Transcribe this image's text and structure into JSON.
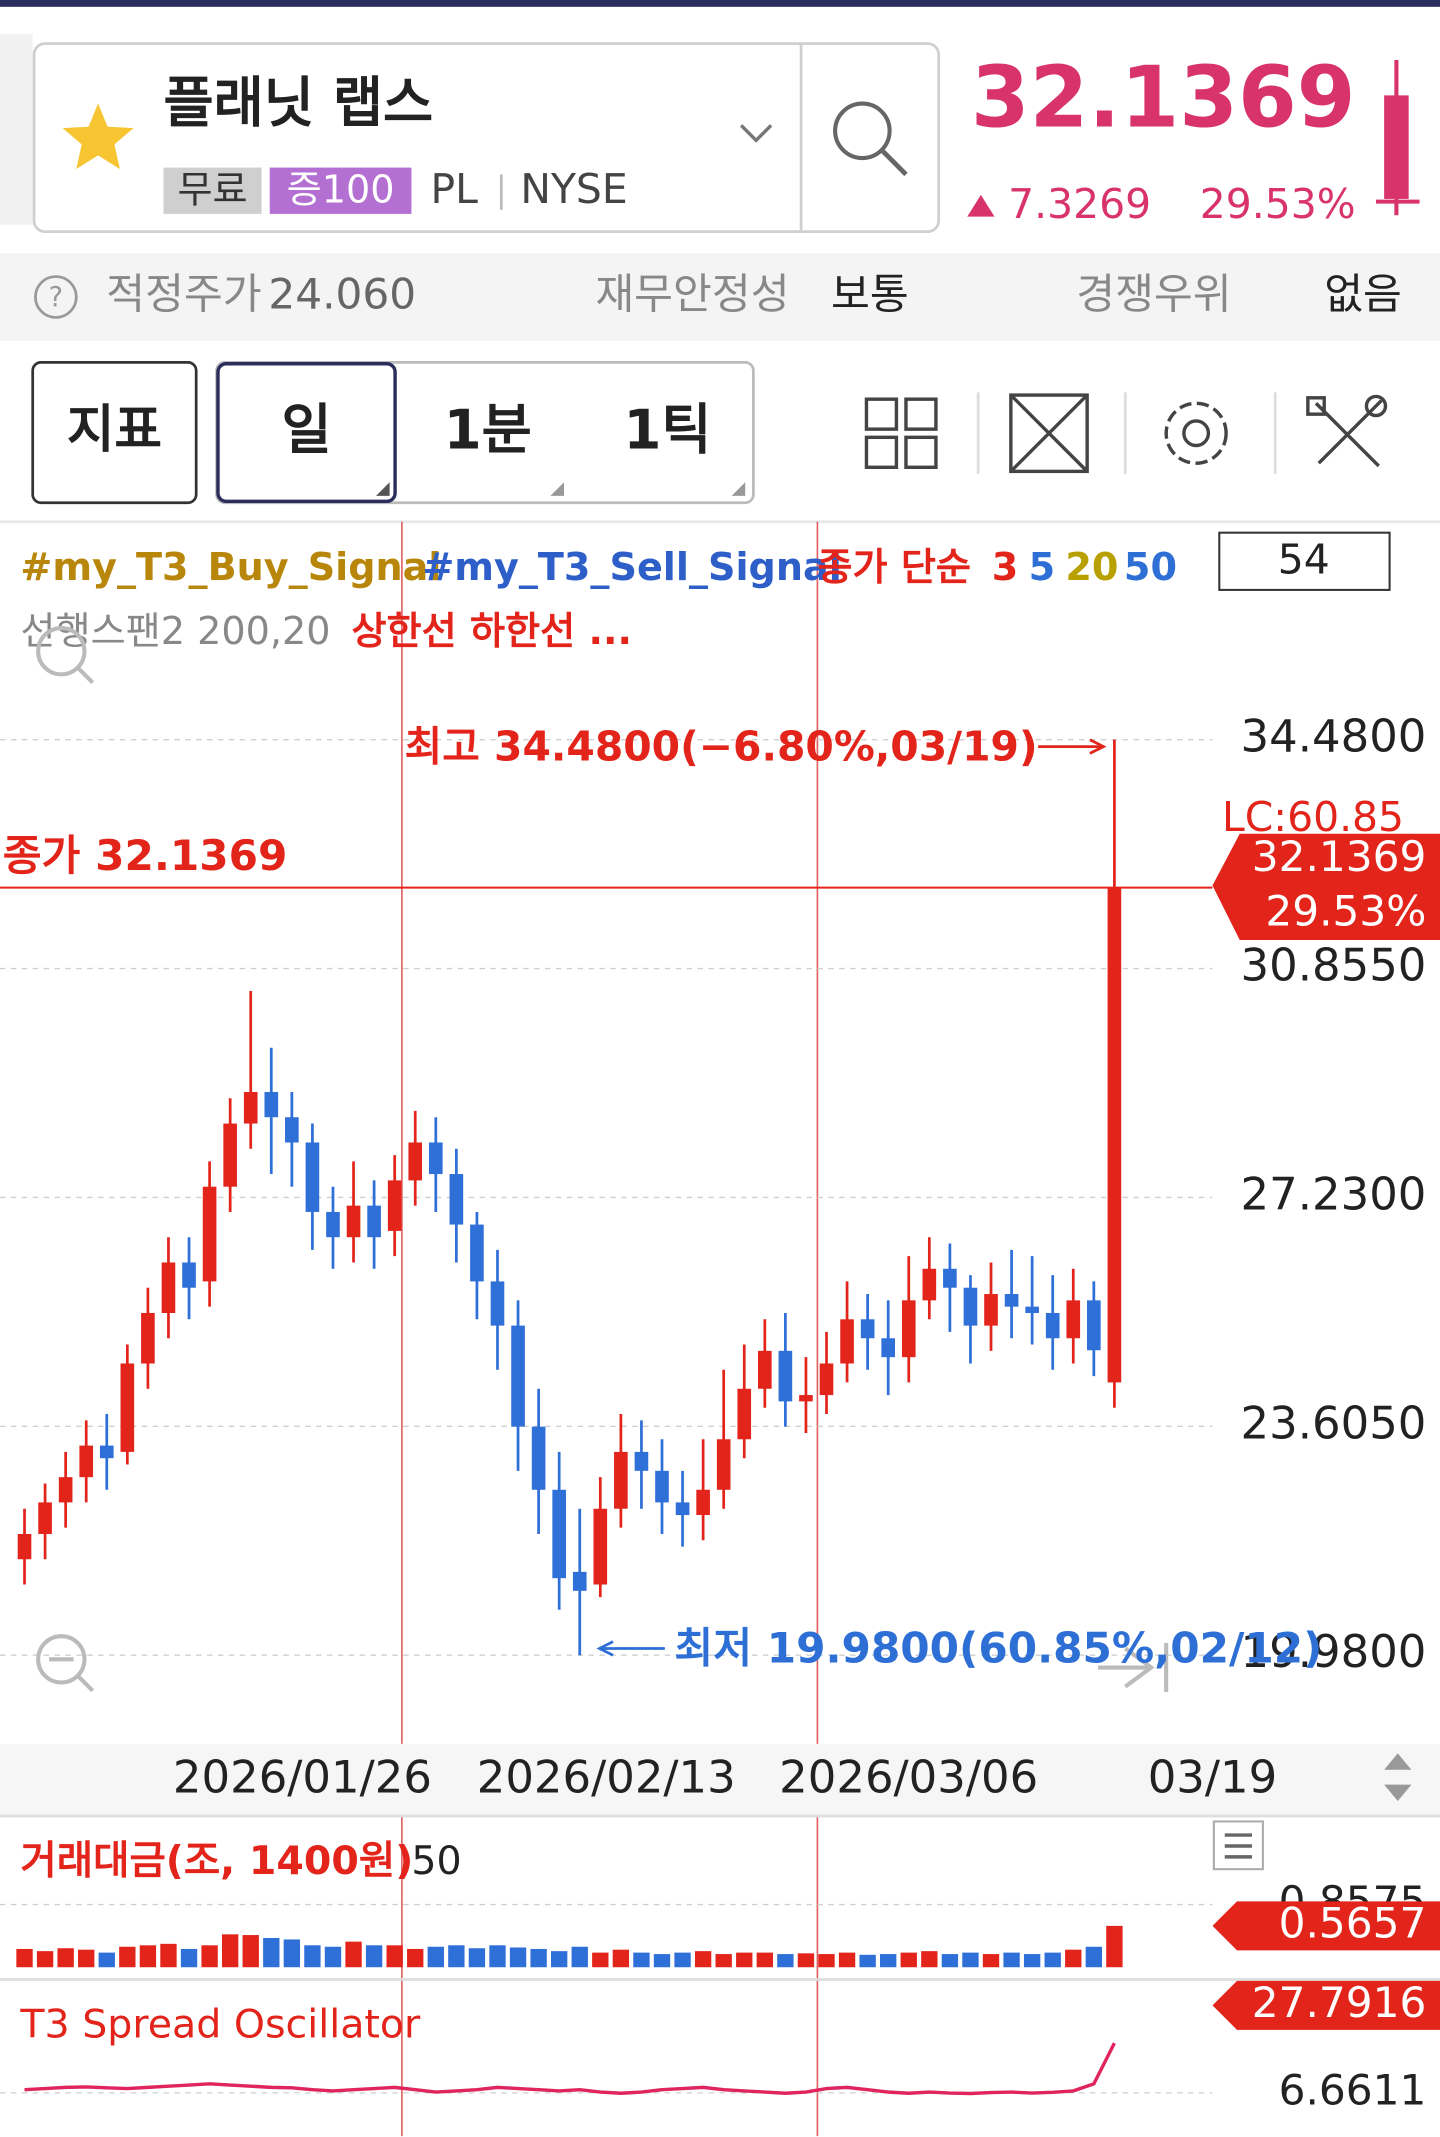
{
  "header": {
    "name": "플래닛 랩스",
    "badges": [
      "무료",
      "증100"
    ],
    "ticker": "PL",
    "exchange": "NYSE",
    "price": "32.1369",
    "change": "7.3269",
    "change_pct": "29.53%"
  },
  "info_bar": {
    "fair_price_label": "적정주가",
    "fair_price": "24.060",
    "stability_label": "재무안정성",
    "stability": "보통",
    "competition_label": "경쟁우위",
    "competition": "없음"
  },
  "toolbar": {
    "indicator": "지표",
    "periods": [
      "일",
      "1분",
      "1틱"
    ]
  },
  "chart_data": {
    "type": "candlestick",
    "legend": [
      {
        "text": "#my_T3_Buy_Signal",
        "color": "#b8860b"
      },
      {
        "text": "#my_T3_Sell_Signal",
        "color": "#2e5fc9"
      },
      {
        "text": "종가 단순",
        "color": "#e3241b"
      },
      {
        "text": "3",
        "color": "#e3241b"
      },
      {
        "text": "5",
        "color": "#2e6fd6"
      },
      {
        "text": "20",
        "color": "#b8a000"
      },
      {
        "text": "50",
        "color": "#2e6fd6"
      }
    ],
    "legend2": [
      {
        "text": "선행스팬2 200,20",
        "color": "#888888"
      },
      {
        "text": "상한선 하한선 ...",
        "color": "#e3241b"
      }
    ],
    "count": "54",
    "colors": {
      "up": "#e3241b",
      "down": "#2f6fd8"
    },
    "open": [
      21.5,
      21.9,
      22.4,
      22.8,
      23.3,
      23.2,
      24.6,
      25.4,
      26.2,
      25.9,
      27.4,
      28.4,
      28.9,
      28.5,
      28.1,
      27.0,
      26.6,
      27.1,
      26.7,
      27.5,
      28.1,
      27.6,
      26.8,
      25.9,
      25.2,
      23.6,
      22.6,
      21.3,
      21.1,
      22.3,
      23.2,
      22.9,
      22.4,
      22.2,
      22.6,
      23.4,
      24.2,
      24.8,
      24.0,
      24.1,
      24.6,
      25.3,
      25.0,
      24.7,
      25.6,
      26.1,
      25.8,
      25.2,
      25.7,
      25.5,
      25.4,
      25.0,
      25.6,
      24.3
    ],
    "high": [
      22.3,
      22.7,
      23.2,
      23.7,
      23.8,
      24.9,
      25.8,
      26.6,
      26.6,
      27.8,
      28.8,
      30.5,
      29.6,
      28.9,
      28.4,
      27.4,
      27.8,
      27.5,
      27.9,
      28.6,
      28.5,
      28.0,
      27.0,
      26.4,
      25.6,
      24.2,
      23.2,
      22.3,
      22.8,
      23.8,
      23.7,
      23.4,
      22.9,
      23.4,
      24.5,
      24.9,
      25.3,
      25.4,
      24.7,
      25.1,
      25.9,
      25.7,
      25.6,
      26.3,
      26.6,
      26.5,
      26.0,
      26.2,
      26.4,
      26.3,
      26.0,
      26.1,
      25.9,
      34.48
    ],
    "low": [
      21.1,
      21.5,
      22.0,
      22.4,
      22.6,
      23.0,
      24.2,
      25.0,
      25.3,
      25.5,
      27.0,
      28.0,
      27.6,
      27.4,
      26.4,
      26.1,
      26.2,
      26.1,
      26.3,
      27.1,
      27.0,
      26.2,
      25.3,
      24.5,
      22.9,
      21.9,
      20.7,
      19.98,
      20.9,
      22.0,
      22.3,
      21.9,
      21.7,
      21.8,
      22.3,
      23.1,
      23.9,
      23.6,
      23.5,
      23.8,
      24.3,
      24.5,
      24.1,
      24.3,
      25.3,
      25.1,
      24.6,
      24.8,
      25.0,
      24.9,
      24.5,
      24.6,
      24.4,
      23.9
    ],
    "close": [
      21.9,
      22.4,
      22.8,
      23.3,
      23.1,
      24.6,
      25.4,
      26.2,
      25.8,
      27.4,
      28.4,
      28.9,
      28.5,
      28.1,
      27.0,
      26.6,
      27.1,
      26.6,
      27.5,
      28.1,
      27.6,
      26.8,
      25.9,
      25.2,
      23.6,
      22.6,
      21.2,
      21.0,
      22.3,
      23.2,
      22.9,
      22.4,
      22.2,
      22.6,
      23.4,
      24.2,
      24.8,
      24.0,
      24.1,
      24.6,
      25.3,
      25.0,
      24.7,
      25.6,
      26.1,
      25.8,
      25.2,
      25.7,
      25.5,
      25.4,
      25.0,
      25.6,
      24.81,
      32.1369
    ],
    "ylim": [
      18.62,
      37.93
    ],
    "yticks": [
      {
        "value": 34.48,
        "label": "34.4800"
      },
      {
        "value": 30.855,
        "label": "30.8550"
      },
      {
        "value": 27.23,
        "label": "27.2300"
      },
      {
        "value": 23.605,
        "label": "23.6050"
      },
      {
        "value": 19.98,
        "label": "19.9800"
      }
    ],
    "x_labels": [
      "2026/01/26",
      "2026/02/13",
      "2026/03/06",
      "03/19"
    ],
    "annotations": {
      "high": "최고 34.4800(−6.80%,03/19)",
      "low": "최저 19.9800(60.85%,02/12)",
      "close": "종가 32.1369"
    },
    "last_tag": {
      "price": "32.1369",
      "pct": "29.53%"
    },
    "lc_label": "LC:60.85",
    "volume": {
      "title": "거래대금(조, 1400원)",
      "period": "50",
      "color_up": "#e3241b",
      "color_down": "#2f6fd8",
      "values": [
        0.25,
        0.22,
        0.26,
        0.24,
        0.2,
        0.28,
        0.3,
        0.32,
        0.25,
        0.3,
        0.45,
        0.44,
        0.4,
        0.38,
        0.3,
        0.28,
        0.35,
        0.3,
        0.3,
        0.25,
        0.28,
        0.3,
        0.26,
        0.3,
        0.27,
        0.25,
        0.22,
        0.28,
        0.2,
        0.24,
        0.2,
        0.18,
        0.2,
        0.22,
        0.18,
        0.2,
        0.2,
        0.18,
        0.19,
        0.18,
        0.2,
        0.17,
        0.18,
        0.2,
        0.22,
        0.18,
        0.2,
        0.18,
        0.2,
        0.18,
        0.2,
        0.24,
        0.28,
        0.5657
      ],
      "value_labels": [
        null,
        null,
        null,
        null,
        null,
        null,
        null,
        null,
        null,
        null,
        null,
        null,
        null,
        null,
        null,
        null,
        null,
        null,
        null,
        null,
        null,
        null,
        null,
        null,
        null,
        null,
        null,
        null,
        null,
        null,
        null,
        null,
        null,
        null,
        null,
        null,
        null,
        null,
        null,
        null,
        null,
        null,
        null,
        null,
        null,
        null,
        null,
        null,
        null,
        null,
        null,
        null,
        null,
        "0.5657"
      ],
      "ylim": [
        0,
        0.95
      ],
      "yticks": [
        0.8575
      ]
    },
    "oscillator": {
      "title": "T3 Spread Oscillator",
      "color": "#e0245e",
      "values": [
        8,
        8.5,
        9,
        9.2,
        8.8,
        8.5,
        9,
        9.5,
        10,
        10.5,
        10,
        9.5,
        9,
        8.8,
        8,
        7.5,
        8,
        8.5,
        9,
        8,
        7,
        7.5,
        8,
        9,
        8.5,
        8,
        7.5,
        8,
        7,
        6.5,
        7,
        8,
        8.5,
        9,
        8,
        7.5,
        7,
        6.5,
        7,
        8.5,
        9,
        8,
        7,
        6.5,
        7,
        6.6,
        6.4,
        6.8,
        7,
        6.6,
        6.9,
        7.5,
        10.5,
        27.7916
      ],
      "value_labels": [
        null,
        null,
        null,
        null,
        null,
        null,
        null,
        null,
        null,
        null,
        null,
        null,
        null,
        null,
        null,
        null,
        null,
        null,
        null,
        null,
        null,
        null,
        null,
        null,
        null,
        null,
        null,
        null,
        null,
        null,
        null,
        null,
        null,
        null,
        null,
        null,
        null,
        null,
        null,
        null,
        null,
        null,
        null,
        null,
        null,
        null,
        null,
        null,
        null,
        null,
        null,
        null,
        null,
        "27.7916"
      ],
      "ylim": [
        -10,
        45
      ],
      "yticks": [
        6.6611
      ]
    }
  }
}
